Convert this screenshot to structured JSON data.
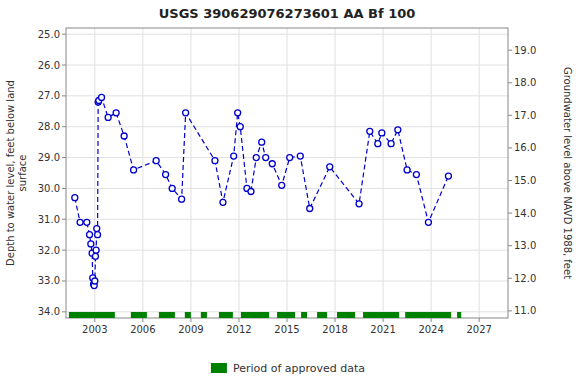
{
  "chart_data": {
    "type": "line",
    "title": "USGS 390629076273601 AA Bf 100",
    "ylabel": "Depth to water level, feet below land\nsurface",
    "y2label": "Groundwater level above NAVD 1988, feet",
    "xlim": [
      2001.2,
      2028.8
    ],
    "xticks": [
      2003,
      2006,
      2009,
      2012,
      2015,
      2018,
      2021,
      2024,
      2027
    ],
    "ylim": [
      34.2,
      24.8
    ],
    "yticks": [
      {
        "value": 25.0,
        "label": "25.0"
      },
      {
        "value": 26.0,
        "label": "26.0"
      },
      {
        "value": 27.0,
        "label": "27.0"
      },
      {
        "value": 28.0,
        "label": "28.0"
      },
      {
        "value": 29.0,
        "label": "29.0"
      },
      {
        "value": 30.0,
        "label": "30.0"
      },
      {
        "value": 31.0,
        "label": "31.0"
      },
      {
        "value": 32.0,
        "label": "32.0"
      },
      {
        "value": 33.0,
        "label": "33.0"
      },
      {
        "value": 34.0,
        "label": "34.0"
      }
    ],
    "y2lim": [
      10.78,
      19.68
    ],
    "y2ticks": [
      {
        "value": 11.0,
        "label": "11.0"
      },
      {
        "value": 12.0,
        "label": "12.0"
      },
      {
        "value": 13.0,
        "label": "13.0"
      },
      {
        "value": 14.0,
        "label": "14.0"
      },
      {
        "value": 15.0,
        "label": "15.0"
      },
      {
        "value": 16.0,
        "label": "16.0"
      },
      {
        "value": 17.0,
        "label": "17.0"
      },
      {
        "value": 18.0,
        "label": "18.0"
      },
      {
        "value": 19.0,
        "label": "19.0"
      }
    ],
    "grid": true,
    "legend": "bottom",
    "x": [
      2001.75,
      2002.08,
      2002.5,
      2002.67,
      2002.75,
      2002.83,
      2002.87,
      2002.92,
      2002.96,
      2003.0,
      2003.04,
      2003.08,
      2003.12,
      2003.17,
      2003.21,
      2003.25,
      2003.42,
      2003.83,
      2004.33,
      2004.83,
      2005.42,
      2006.83,
      2007.42,
      2007.83,
      2008.42,
      2008.67,
      2010.5,
      2011.0,
      2011.67,
      2011.92,
      2012.08,
      2012.5,
      2012.75,
      2013.08,
      2013.42,
      2013.67,
      2014.08,
      2014.67,
      2015.17,
      2015.83,
      2016.42,
      2017.67,
      2019.5,
      2020.17,
      2020.67,
      2020.92,
      2021.5,
      2021.92,
      2022.5,
      2023.08,
      2023.83,
      2025.08
    ],
    "series": [
      {
        "color": "#0000cc",
        "line_style": "dashed",
        "marker": "circle",
        "values": [
          30.3,
          31.1,
          31.1,
          31.5,
          31.8,
          32.1,
          32.9,
          33.1,
          33.15,
          33.0,
          32.2,
          32.0,
          31.3,
          31.5,
          27.2,
          27.15,
          27.05,
          27.7,
          27.55,
          28.3,
          29.4,
          29.1,
          29.55,
          30.0,
          30.35,
          27.55,
          29.1,
          30.45,
          28.95,
          27.55,
          28.0,
          30.0,
          30.1,
          29.0,
          28.5,
          29.0,
          29.2,
          29.9,
          29.0,
          28.95,
          30.65,
          29.3,
          30.5,
          28.15,
          28.55,
          28.2,
          28.55,
          28.1,
          29.4,
          29.55,
          31.1,
          29.6
        ]
      }
    ],
    "periods": {
      "name": "Period of approved data",
      "color": "#008000",
      "ranges": [
        [
          2001.38,
          2004.25
        ],
        [
          2005.25,
          2006.25
        ],
        [
          2007.0,
          2008.0
        ],
        [
          2008.62,
          2009.0
        ],
        [
          2009.62,
          2010.0
        ],
        [
          2010.75,
          2011.62
        ],
        [
          2012.12,
          2013.88
        ],
        [
          2014.38,
          2015.5
        ],
        [
          2015.88,
          2016.25
        ],
        [
          2016.88,
          2017.5
        ],
        [
          2018.12,
          2019.25
        ],
        [
          2019.75,
          2022.0
        ],
        [
          2022.38,
          2025.25
        ],
        [
          2025.62,
          2025.88
        ]
      ]
    }
  }
}
